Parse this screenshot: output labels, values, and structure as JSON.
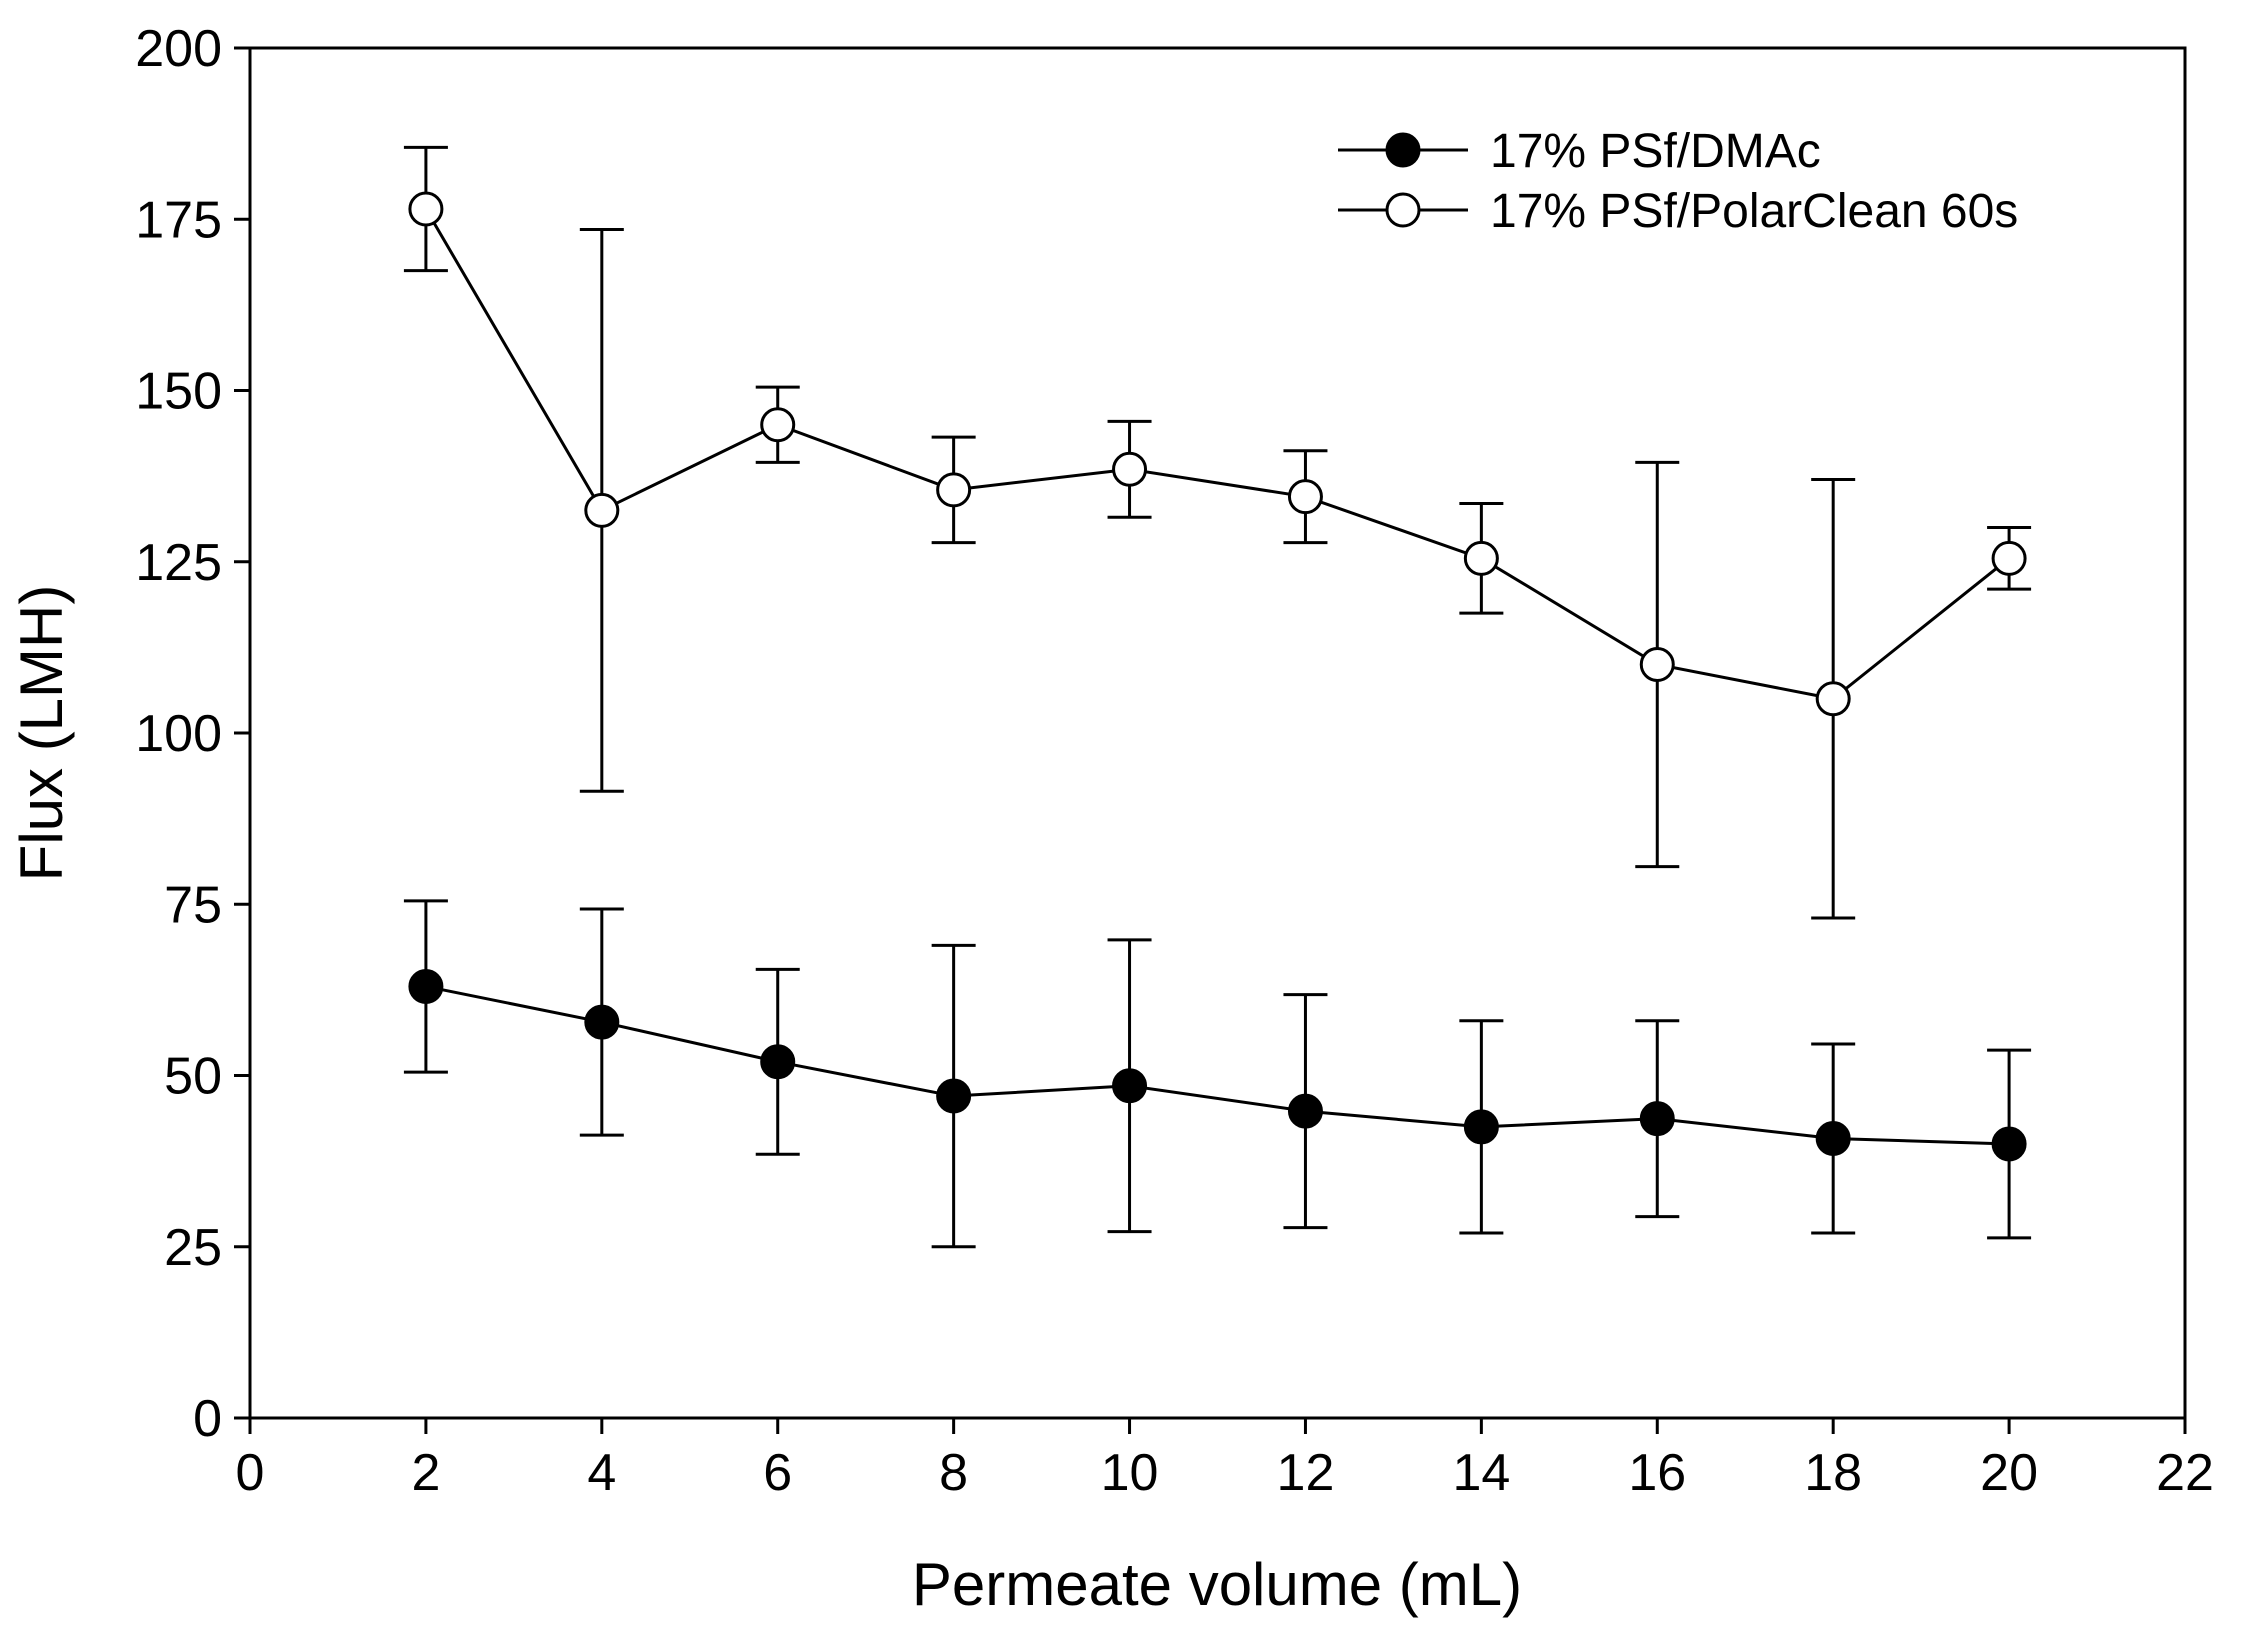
{
  "chart_data": {
    "type": "line",
    "title": "",
    "xlabel": "Permeate volume (mL)",
    "ylabel": "Flux (LMH)",
    "xlim": [
      0,
      22
    ],
    "ylim": [
      0,
      200
    ],
    "xticks": [
      0,
      2,
      4,
      6,
      8,
      10,
      12,
      14,
      16,
      18,
      20,
      22
    ],
    "yticks": [
      0,
      25,
      50,
      75,
      100,
      125,
      150,
      175,
      200
    ],
    "grid": false,
    "legend_position": "top-right",
    "x": [
      2,
      4,
      6,
      8,
      10,
      12,
      14,
      16,
      18,
      20
    ],
    "series": [
      {
        "name": "17% PSf/DMAc",
        "marker": "filled-circle",
        "color": "#000000",
        "values": [
          63,
          57.8,
          52,
          47,
          48.5,
          44.8,
          42.5,
          43.7,
          40.8,
          40
        ],
        "error": [
          12.5,
          16.5,
          13.5,
          22,
          21.3,
          17,
          15.5,
          14.3,
          13.8,
          13.7
        ]
      },
      {
        "name": "17% PSf/PolarClean 60s",
        "marker": "open-circle",
        "color": "#000000",
        "values": [
          176.5,
          132.5,
          145,
          135.5,
          138.5,
          134.5,
          125.5,
          110,
          105,
          125.5
        ],
        "error": [
          9,
          41,
          5.5,
          7.7,
          7,
          6.7,
          8,
          29.5,
          32,
          4.5
        ]
      }
    ]
  }
}
